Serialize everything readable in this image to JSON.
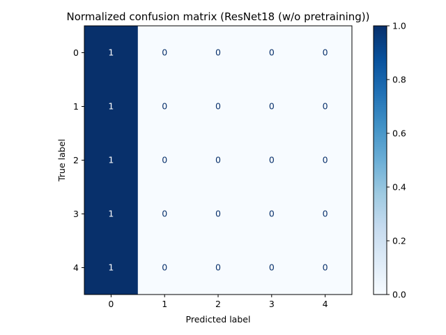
{
  "chart_data": {
    "type": "heatmap",
    "title": "Normalized confusion matrix (ResNet18 (w/o pretraining))",
    "xlabel": "Predicted label",
    "ylabel": "True label",
    "x_categories": [
      "0",
      "1",
      "2",
      "3",
      "4"
    ],
    "y_categories": [
      "0",
      "1",
      "2",
      "3",
      "4"
    ],
    "values": [
      [
        1,
        0,
        0,
        0,
        0
      ],
      [
        1,
        0,
        0,
        0,
        0
      ],
      [
        1,
        0,
        0,
        0,
        0
      ],
      [
        1,
        0,
        0,
        0,
        0
      ],
      [
        1,
        0,
        0,
        0,
        0
      ]
    ],
    "cell_labels": [
      [
        "1",
        "0",
        "0",
        "0",
        "0"
      ],
      [
        "1",
        "0",
        "0",
        "0",
        "0"
      ],
      [
        "1",
        "0",
        "0",
        "0",
        "0"
      ],
      [
        "1",
        "0",
        "0",
        "0",
        "0"
      ],
      [
        "1",
        "0",
        "0",
        "0",
        "0"
      ]
    ],
    "colormap": "Blues",
    "color_low": "#f7fbff",
    "color_high": "#08306b",
    "colorbar_range": [
      0.0,
      1.0
    ],
    "colorbar_ticks": [
      "0.0",
      "0.2",
      "0.4",
      "0.6",
      "0.8",
      "1.0"
    ],
    "grid": false
  }
}
